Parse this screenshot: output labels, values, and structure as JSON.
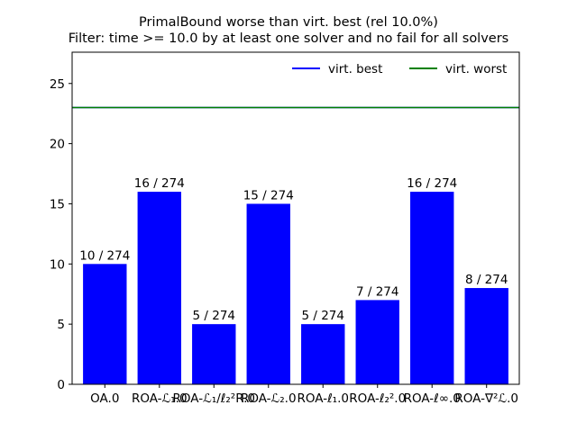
{
  "chart_data": {
    "type": "bar",
    "title": [
      "PrimalBound worse than virt. best (rel 10.0%)",
      "Filter: time >= 10.0 by at least one solver and no fail for all solvers"
    ],
    "xlabel": "",
    "ylabel": "",
    "categories": [
      "OA.0",
      "ROA-ℒ₁.0",
      "ROA-ℒ₁/ℓ₂²R.0",
      "ROA-ℒ₂.0",
      "ROA-ℓ₁.0",
      "ROA-ℓ₂².0",
      "ROA-ℓ∞.0",
      "ROA-∇²ℒ.0"
    ],
    "values": [
      10,
      16,
      5,
      15,
      5,
      7,
      16,
      8
    ],
    "bar_labels": [
      "10 / 274",
      "16 / 274",
      "5 / 274",
      "15 / 274",
      "5 / 274",
      "7 / 274",
      "16 / 274",
      "8 / 274"
    ],
    "bar_color": "#0000ff",
    "ylim": [
      0,
      27.6
    ],
    "yticks": [
      0,
      5,
      10,
      15,
      20,
      25
    ],
    "hlines": [
      {
        "name": "virt. best",
        "value": 23,
        "color": "#0000ff"
      },
      {
        "name": "virt. worst",
        "value": 23,
        "color": "#008000"
      }
    ],
    "legend_position": "top-right",
    "grid": false
  }
}
